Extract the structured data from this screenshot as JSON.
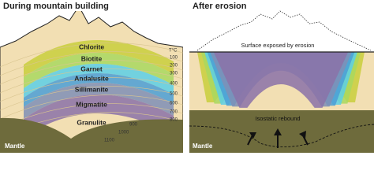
{
  "left": {
    "title": "During mountain building",
    "zones": [
      "Chlorite",
      "Biotite",
      "Garnet",
      "Andalusite",
      "Sillimanite",
      "Migmatite",
      "Granulite"
    ],
    "temperature_unit": "T°C",
    "isotherms": [
      "100",
      "200",
      "300",
      "400",
      "500",
      "600",
      "700",
      "800"
    ],
    "deep_isotherms": [
      "900",
      "1000",
      "1100"
    ],
    "mantle": "Mantle"
  },
  "right": {
    "title": "After erosion",
    "surface_label": "Surface exposed by erosion",
    "rebound_label": "Isostatic rebound",
    "mantle": "Mantle"
  }
}
